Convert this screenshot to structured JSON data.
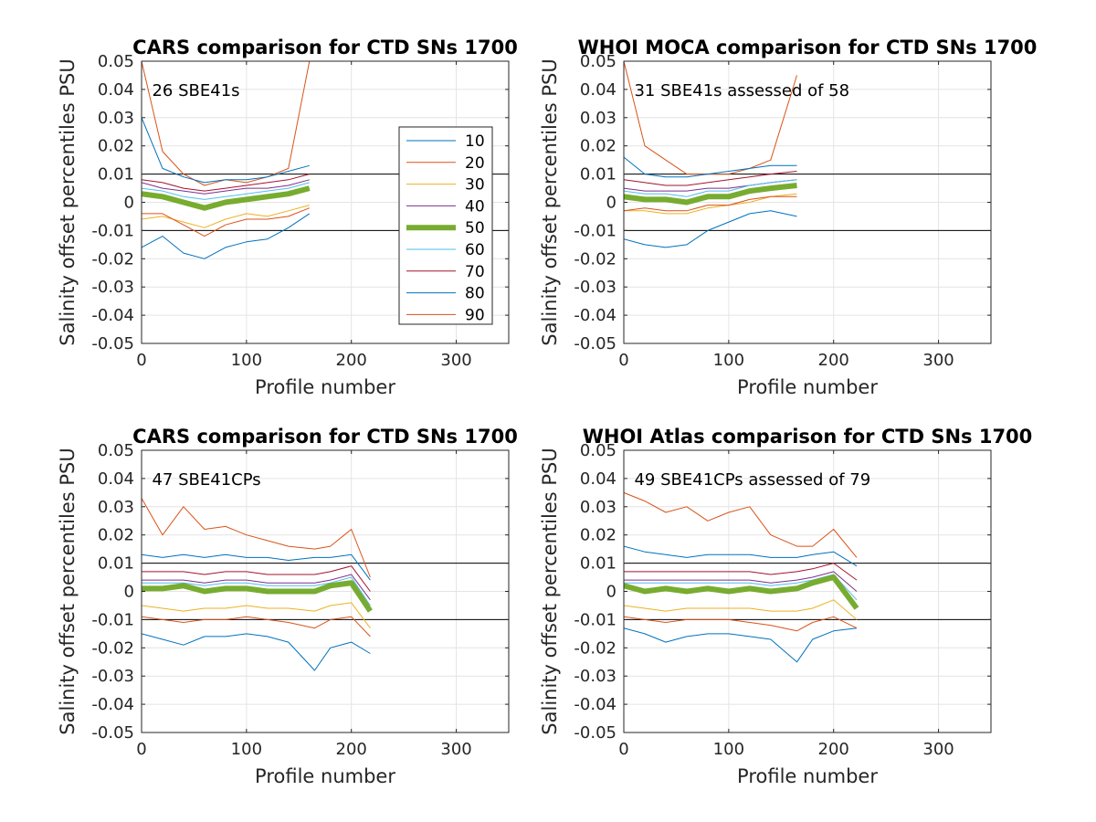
{
  "figure": {
    "percentiles": [
      {
        "label": "10",
        "color": "#0072BD"
      },
      {
        "label": "20",
        "color": "#D95319"
      },
      {
        "label": "30",
        "color": "#EDB120"
      },
      {
        "label": "40",
        "color": "#7E2F8E"
      },
      {
        "label": "50",
        "color": "#77AC30"
      },
      {
        "label": "60",
        "color": "#4DBEEE"
      },
      {
        "label": "70",
        "color": "#A2142F"
      },
      {
        "label": "80",
        "color": "#0072BD"
      },
      {
        "label": "90",
        "color": "#D95319"
      }
    ]
  },
  "chart_data": [
    {
      "type": "line",
      "title": "CARS comparison for CTD SNs 1700",
      "annotation": "26 SBE41s",
      "xlabel": "Profile number",
      "ylabel": "Salinity offset percentiles PSU",
      "xlim": [
        0,
        350
      ],
      "ylim": [
        -0.05,
        0.05
      ],
      "xticks": [
        0,
        100,
        200,
        300
      ],
      "yticks": [
        -0.05,
        -0.04,
        -0.03,
        -0.02,
        -0.01,
        0,
        0.01,
        0.02,
        0.03,
        0.04,
        0.05
      ],
      "ytick_labels": [
        "-0.05",
        "-0.04",
        "-0.03",
        "-0.02",
        "-0.01",
        "0",
        "0.01",
        "0.02",
        "0.03",
        "0.04",
        "0.05"
      ],
      "xtick_labels": [
        "0",
        "100",
        "200",
        "300"
      ],
      "reference_lines": [
        0.01,
        -0.01
      ],
      "grid": true,
      "legend": true,
      "x": [
        0,
        20,
        40,
        60,
        80,
        100,
        120,
        140,
        160
      ],
      "series": [
        {
          "name": "10",
          "values": [
            -0.016,
            -0.012,
            -0.018,
            -0.02,
            -0.016,
            -0.014,
            -0.013,
            -0.009,
            -0.004
          ]
        },
        {
          "name": "20",
          "values": [
            0.05,
            0.018,
            0.01,
            0.006,
            0.008,
            0.007,
            0.009,
            0.012,
            0.05
          ]
        },
        {
          "name": "30",
          "values": [
            -0.006,
            -0.005,
            -0.007,
            -0.009,
            -0.006,
            -0.004,
            -0.005,
            -0.003,
            -0.001
          ]
        },
        {
          "name": "40",
          "values": [
            0.007,
            0.005,
            0.004,
            0.003,
            0.004,
            0.005,
            0.005,
            0.006,
            0.008
          ]
        },
        {
          "name": "50",
          "values": [
            0.003,
            0.002,
            0.0,
            -0.002,
            0.0,
            0.001,
            0.002,
            0.003,
            0.005
          ]
        },
        {
          "name": "60",
          "values": [
            0.005,
            0.004,
            0.002,
            0.001,
            0.002,
            0.003,
            0.004,
            0.005,
            0.007
          ]
        },
        {
          "name": "70",
          "values": [
            0.008,
            0.007,
            0.005,
            0.004,
            0.005,
            0.006,
            0.007,
            0.008,
            0.01
          ]
        },
        {
          "name": "80",
          "values": [
            0.03,
            0.012,
            0.009,
            0.007,
            0.008,
            0.008,
            0.009,
            0.011,
            0.013
          ]
        },
        {
          "name": "90",
          "values": [
            -0.004,
            -0.004,
            -0.008,
            -0.012,
            -0.008,
            -0.006,
            -0.006,
            -0.005,
            -0.002
          ]
        }
      ]
    },
    {
      "type": "line",
      "title": "WHOI MOCA comparison for CTD SNs 1700",
      "annotation": "31 SBE41s assessed of 58",
      "xlabel": "Profile number",
      "ylabel": "Salinity offset percentiles PSU",
      "xlim": [
        0,
        350
      ],
      "ylim": [
        -0.05,
        0.05
      ],
      "xticks": [
        0,
        100,
        200,
        300
      ],
      "yticks": [
        -0.05,
        -0.04,
        -0.03,
        -0.02,
        -0.01,
        0,
        0.01,
        0.02,
        0.03,
        0.04,
        0.05
      ],
      "ytick_labels": [
        "-0.05",
        "-0.04",
        "-0.03",
        "-0.02",
        "-0.01",
        "0",
        "0.01",
        "0.02",
        "0.03",
        "0.04",
        "0.05"
      ],
      "xtick_labels": [
        "0",
        "100",
        "200",
        "300"
      ],
      "reference_lines": [
        0.01,
        -0.01
      ],
      "grid": true,
      "legend": false,
      "x": [
        0,
        20,
        40,
        60,
        80,
        100,
        120,
        140,
        165
      ],
      "series": [
        {
          "name": "10",
          "values": [
            -0.013,
            -0.015,
            -0.016,
            -0.015,
            -0.01,
            -0.007,
            -0.004,
            -0.003,
            -0.005
          ]
        },
        {
          "name": "20",
          "values": [
            0.05,
            0.02,
            0.015,
            0.01,
            0.01,
            0.01,
            0.012,
            0.015,
            0.045
          ]
        },
        {
          "name": "30",
          "values": [
            -0.003,
            -0.003,
            -0.004,
            -0.004,
            -0.002,
            -0.001,
            0.0,
            0.002,
            0.003
          ]
        },
        {
          "name": "40",
          "values": [
            0.005,
            0.004,
            0.004,
            0.004,
            0.005,
            0.005,
            0.006,
            0.007,
            0.008
          ]
        },
        {
          "name": "50",
          "values": [
            0.002,
            0.001,
            0.001,
            0.0,
            0.002,
            0.002,
            0.004,
            0.005,
            0.006
          ]
        },
        {
          "name": "60",
          "values": [
            0.004,
            0.003,
            0.003,
            0.002,
            0.004,
            0.004,
            0.006,
            0.007,
            0.008
          ]
        },
        {
          "name": "70",
          "values": [
            0.008,
            0.007,
            0.006,
            0.006,
            0.007,
            0.008,
            0.009,
            0.01,
            0.011
          ]
        },
        {
          "name": "80",
          "values": [
            0.016,
            0.01,
            0.009,
            0.009,
            0.01,
            0.011,
            0.012,
            0.013,
            0.013
          ]
        },
        {
          "name": "90",
          "values": [
            -0.003,
            -0.002,
            -0.003,
            -0.003,
            -0.001,
            -0.001,
            0.001,
            0.002,
            0.002
          ]
        }
      ]
    },
    {
      "type": "line",
      "title": "CARS comparison for CTD SNs 1700",
      "annotation": "47 SBE41CPs",
      "xlabel": "Profile number",
      "ylabel": "Salinity offset percentiles PSU",
      "xlim": [
        0,
        350
      ],
      "ylim": [
        -0.05,
        0.05
      ],
      "xticks": [
        0,
        100,
        200,
        300
      ],
      "yticks": [
        -0.05,
        -0.04,
        -0.03,
        -0.02,
        -0.01,
        0,
        0.01,
        0.02,
        0.03,
        0.04,
        0.05
      ],
      "ytick_labels": [
        "-0.05",
        "-0.04",
        "-0.03",
        "-0.02",
        "-0.01",
        "0",
        "0.01",
        "0.02",
        "0.03",
        "0.04",
        "0.05"
      ],
      "xtick_labels": [
        "0",
        "100",
        "200",
        "300"
      ],
      "reference_lines": [
        0.01,
        -0.01
      ],
      "grid": true,
      "legend": false,
      "x": [
        0,
        20,
        40,
        60,
        80,
        100,
        120,
        140,
        165,
        180,
        200,
        218
      ],
      "series": [
        {
          "name": "10",
          "values": [
            -0.015,
            -0.017,
            -0.019,
            -0.016,
            -0.016,
            -0.015,
            -0.016,
            -0.018,
            -0.028,
            -0.02,
            -0.018,
            -0.022
          ]
        },
        {
          "name": "20",
          "values": [
            0.033,
            0.02,
            0.03,
            0.022,
            0.023,
            0.02,
            0.018,
            0.016,
            0.015,
            0.016,
            0.022,
            0.005
          ]
        },
        {
          "name": "30",
          "values": [
            -0.005,
            -0.006,
            -0.007,
            -0.006,
            -0.006,
            -0.005,
            -0.006,
            -0.006,
            -0.007,
            -0.005,
            -0.004,
            -0.013
          ]
        },
        {
          "name": "40",
          "values": [
            0.004,
            0.004,
            0.004,
            0.003,
            0.004,
            0.004,
            0.003,
            0.003,
            0.003,
            0.004,
            0.006,
            -0.003
          ]
        },
        {
          "name": "50",
          "values": [
            0.001,
            0.001,
            0.002,
            0.0,
            0.001,
            0.001,
            0.0,
            0.0,
            0.0,
            0.002,
            0.003,
            -0.007
          ]
        },
        {
          "name": "60",
          "values": [
            0.003,
            0.003,
            0.003,
            0.002,
            0.003,
            0.003,
            0.002,
            0.002,
            0.002,
            0.003,
            0.005,
            -0.005
          ]
        },
        {
          "name": "70",
          "values": [
            0.007,
            0.007,
            0.007,
            0.006,
            0.007,
            0.007,
            0.006,
            0.006,
            0.006,
            0.007,
            0.009,
            0.0
          ]
        },
        {
          "name": "80",
          "values": [
            0.013,
            0.012,
            0.013,
            0.012,
            0.013,
            0.012,
            0.012,
            0.011,
            0.012,
            0.012,
            0.013,
            0.004
          ]
        },
        {
          "name": "90",
          "values": [
            -0.009,
            -0.01,
            -0.011,
            -0.01,
            -0.01,
            -0.009,
            -0.01,
            -0.011,
            -0.013,
            -0.01,
            -0.009,
            -0.016
          ]
        }
      ]
    },
    {
      "type": "line",
      "title": "WHOI Atlas comparison for CTD SNs 1700",
      "annotation": "49 SBE41CPs assessed of 79",
      "xlabel": "Profile number",
      "ylabel": "Salinity offset percentiles PSU",
      "xlim": [
        0,
        350
      ],
      "ylim": [
        -0.05,
        0.05
      ],
      "xticks": [
        0,
        100,
        200,
        300
      ],
      "yticks": [
        -0.05,
        -0.04,
        -0.03,
        -0.02,
        -0.01,
        0,
        0.01,
        0.02,
        0.03,
        0.04,
        0.05
      ],
      "ytick_labels": [
        "-0.05",
        "-0.04",
        "-0.03",
        "-0.02",
        "-0.01",
        "0",
        "0.01",
        "0.02",
        "0.03",
        "0.04",
        "0.05"
      ],
      "xtick_labels": [
        "0",
        "100",
        "200",
        "300"
      ],
      "reference_lines": [
        0.01,
        -0.01
      ],
      "grid": true,
      "legend": false,
      "x": [
        0,
        20,
        40,
        60,
        80,
        100,
        120,
        140,
        165,
        180,
        200,
        222
      ],
      "series": [
        {
          "name": "10",
          "values": [
            -0.013,
            -0.015,
            -0.018,
            -0.016,
            -0.015,
            -0.015,
            -0.016,
            -0.017,
            -0.025,
            -0.017,
            -0.014,
            -0.013
          ]
        },
        {
          "name": "20",
          "values": [
            0.035,
            0.032,
            0.028,
            0.03,
            0.025,
            0.028,
            0.03,
            0.02,
            0.016,
            0.016,
            0.022,
            0.012
          ]
        },
        {
          "name": "30",
          "values": [
            -0.005,
            -0.006,
            -0.007,
            -0.006,
            -0.006,
            -0.006,
            -0.006,
            -0.007,
            -0.007,
            -0.006,
            -0.003,
            -0.01
          ]
        },
        {
          "name": "40",
          "values": [
            0.004,
            0.004,
            0.004,
            0.004,
            0.004,
            0.004,
            0.004,
            0.003,
            0.004,
            0.005,
            0.007,
            0.0
          ]
        },
        {
          "name": "50",
          "values": [
            0.002,
            0.0,
            0.001,
            0.0,
            0.001,
            0.0,
            0.001,
            0.0,
            0.001,
            0.003,
            0.005,
            -0.006
          ]
        },
        {
          "name": "60",
          "values": [
            0.003,
            0.003,
            0.003,
            0.003,
            0.003,
            0.003,
            0.003,
            0.002,
            0.003,
            0.004,
            0.006,
            -0.003
          ]
        },
        {
          "name": "70",
          "values": [
            0.007,
            0.007,
            0.007,
            0.007,
            0.007,
            0.007,
            0.007,
            0.006,
            0.007,
            0.008,
            0.01,
            0.004
          ]
        },
        {
          "name": "80",
          "values": [
            0.016,
            0.014,
            0.013,
            0.012,
            0.013,
            0.013,
            0.013,
            0.012,
            0.012,
            0.013,
            0.014,
            0.009
          ]
        },
        {
          "name": "90",
          "values": [
            -0.009,
            -0.01,
            -0.011,
            -0.01,
            -0.01,
            -0.01,
            -0.011,
            -0.012,
            -0.014,
            -0.011,
            -0.009,
            -0.013
          ]
        }
      ]
    }
  ]
}
